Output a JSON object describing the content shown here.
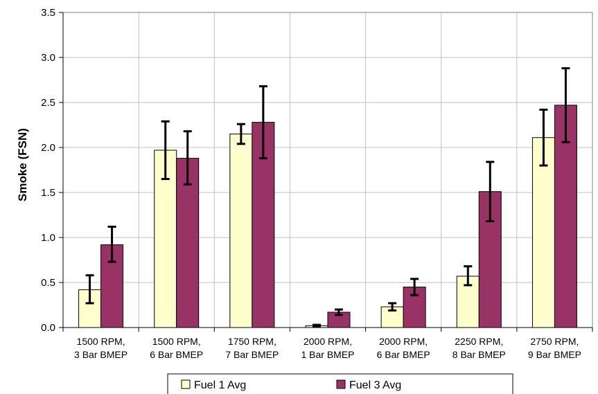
{
  "chart_data": {
    "type": "bar",
    "ylabel": "Smoke (FSN)",
    "xlabel": "",
    "ylim": [
      0,
      3.5
    ],
    "ytick_step": 0.5,
    "ytick_labels": [
      "0.0",
      "0.5",
      "1.0",
      "1.5",
      "2.0",
      "2.5",
      "3.0",
      "3.5"
    ],
    "grid": true,
    "legend_position": "bottom",
    "categories": [
      [
        "1500 RPM,",
        "3 Bar BMEP"
      ],
      [
        "1500 RPM,",
        "6 Bar BMEP"
      ],
      [
        "1750 RPM,",
        "7 Bar BMEP"
      ],
      [
        "2000 RPM,",
        "1 Bar BMEP"
      ],
      [
        "2000 RPM,",
        "6 Bar BMEP"
      ],
      [
        "2250 RPM,",
        "8 Bar BMEP"
      ],
      [
        "2750 RPM,",
        "9 Bar BMEP"
      ]
    ],
    "series": [
      {
        "name": "Fuel 1 Avg",
        "color": "#FFFFCC",
        "values": [
          0.42,
          1.97,
          2.15,
          0.02,
          0.23,
          0.57,
          2.11
        ],
        "error_low": [
          0.27,
          1.65,
          2.04,
          0.01,
          0.19,
          0.47,
          1.8
        ],
        "error_high": [
          0.58,
          2.29,
          2.26,
          0.03,
          0.27,
          0.68,
          2.42
        ]
      },
      {
        "name": "Fuel 3 Avg",
        "color": "#993366",
        "values": [
          0.92,
          1.88,
          2.28,
          0.17,
          0.45,
          1.51,
          2.47
        ],
        "error_low": [
          0.73,
          1.59,
          1.88,
          0.14,
          0.36,
          1.18,
          2.06
        ],
        "error_high": [
          1.12,
          2.18,
          2.68,
          0.2,
          0.54,
          1.84,
          2.88
        ]
      }
    ]
  }
}
